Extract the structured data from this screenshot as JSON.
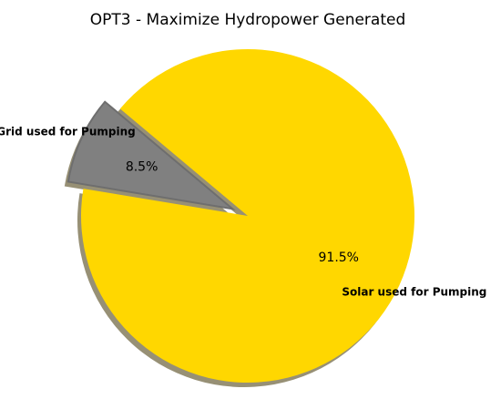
{
  "chart_data": {
    "type": "pie",
    "title": "OPT3 - Maximize Hydropower Generated",
    "categories": [
      "Grid used for Pumping",
      "Solar used for Pumping"
    ],
    "values": [
      8.5,
      91.5
    ],
    "value_labels": [
      "8.5%",
      "91.5%"
    ],
    "colors": [
      "#808080",
      "#ffd700"
    ]
  }
}
